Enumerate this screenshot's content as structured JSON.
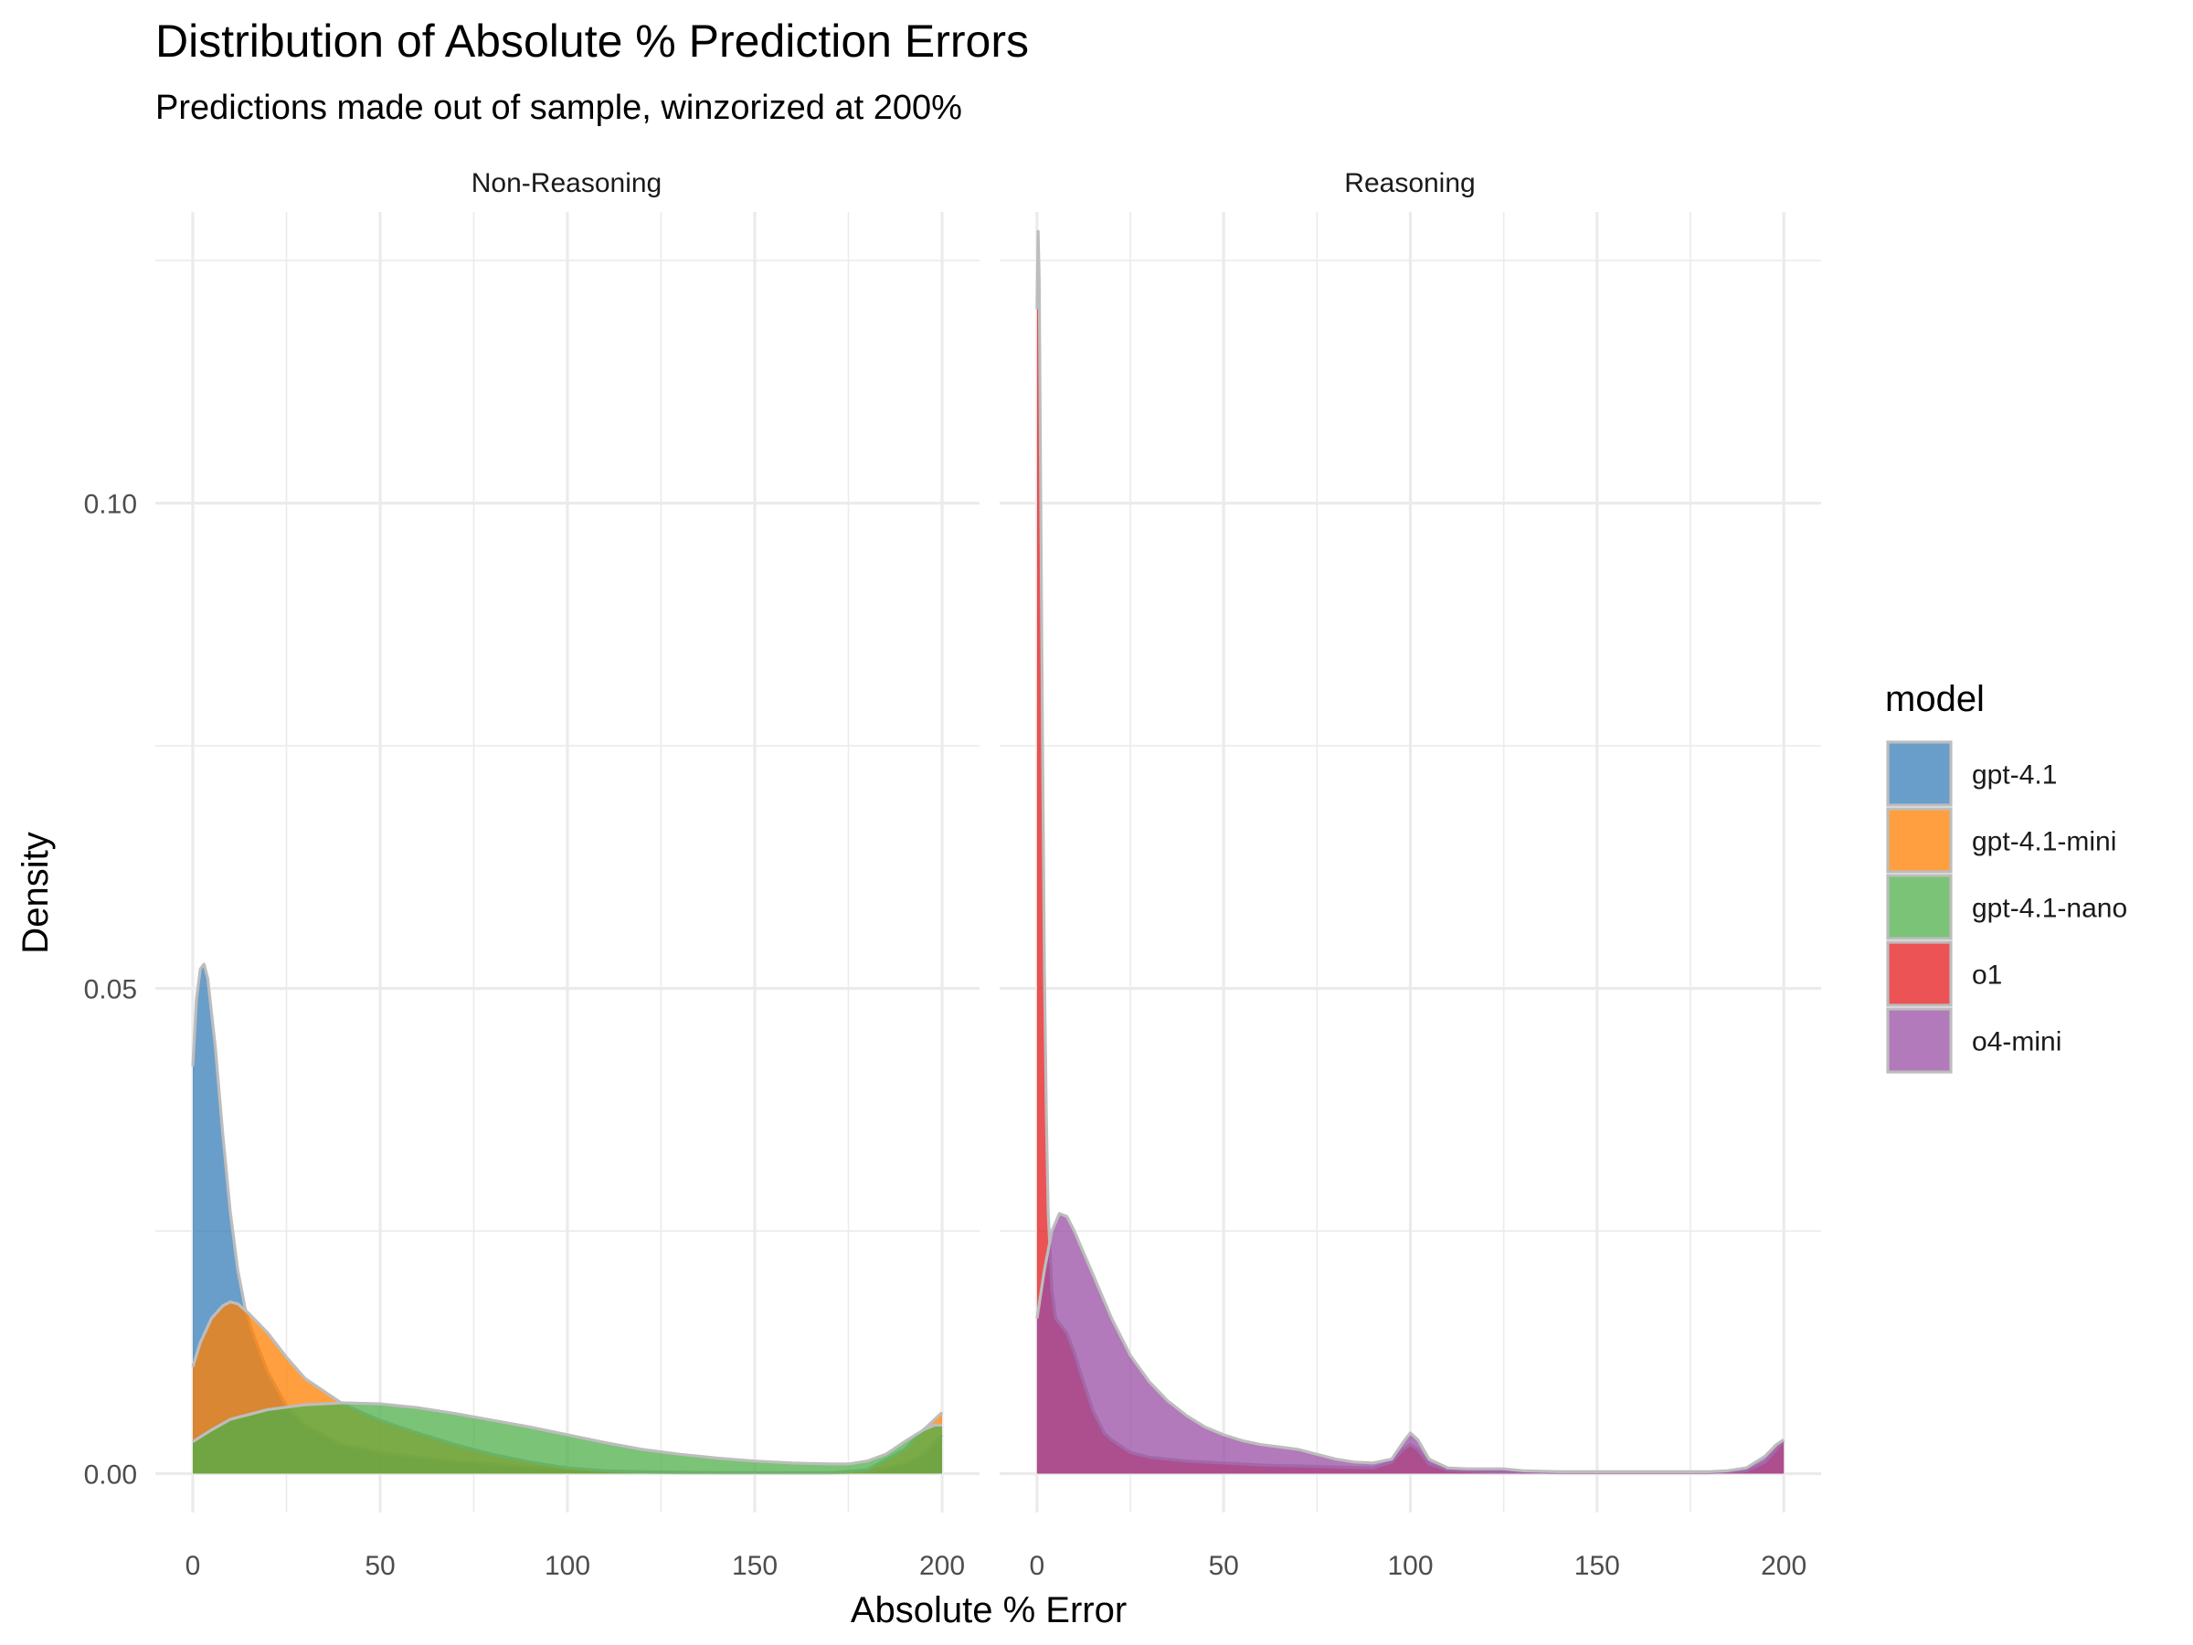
{
  "chart_data": {
    "type": "area",
    "title": "Distribution of Absolute % Prediction Errors",
    "subtitle": "Predictions made out of sample, winzorized at 200%",
    "xlabel": "Absolute % Error",
    "ylabel": "Density",
    "xlim": [
      -10,
      210
    ],
    "ylim": [
      -0.004,
      0.13
    ],
    "x_ticks": [
      0,
      50,
      100,
      150,
      200
    ],
    "y_ticks": [
      0.0,
      0.05,
      0.1
    ],
    "y_tick_labels": [
      "0.00",
      "0.05",
      "0.10"
    ],
    "grid": true,
    "legend": {
      "title": "model",
      "position": "right"
    },
    "series_colors": {
      "gpt-4.1": "#377eb8",
      "gpt-4.1-mini": "#ff7f00",
      "gpt-4.1-nano": "#4daf4a",
      "o1": "#e41a1c",
      "o4-mini": "#984ea3"
    },
    "outline_color": "#bdbdbd",
    "fill_opacity": 0.75,
    "legend_items": [
      "gpt-4.1",
      "gpt-4.1-mini",
      "gpt-4.1-nano",
      "o1",
      "o4-mini"
    ],
    "facets": [
      {
        "label": "Non-Reasoning",
        "series": [
          {
            "name": "gpt-4.1",
            "x": [
              0,
              1,
              2,
              3,
              4,
              6,
              8,
              10,
              12,
              14,
              16,
              18,
              20,
              25,
              30,
              40,
              50,
              60,
              70,
              80,
              90,
              100,
              110,
              120,
              130,
              140,
              150,
              160,
              170,
              180,
              190,
              195,
              200
            ],
            "y": [
              0.042,
              0.049,
              0.052,
              0.0525,
              0.051,
              0.044,
              0.035,
              0.027,
              0.021,
              0.017,
              0.0145,
              0.0125,
              0.0105,
              0.007,
              0.005,
              0.003,
              0.0022,
              0.0017,
              0.0013,
              0.001,
              0.0007,
              0.0005,
              0.0003,
              0.0002,
              0.00015,
              0.0001,
              0.0001,
              8e-05,
              8e-05,
              0.0002,
              0.001,
              0.002,
              0.004
            ]
          },
          {
            "name": "gpt-4.1-mini",
            "x": [
              0,
              2,
              5,
              8,
              10,
              12,
              15,
              20,
              25,
              30,
              40,
              50,
              60,
              70,
              80,
              90,
              100,
              110,
              120,
              130,
              140,
              150,
              160,
              170,
              180,
              190,
              195,
              200
            ],
            "y": [
              0.011,
              0.0135,
              0.016,
              0.0173,
              0.0177,
              0.0175,
              0.0165,
              0.0145,
              0.012,
              0.0098,
              0.0072,
              0.0055,
              0.0042,
              0.003,
              0.002,
              0.0012,
              0.0006,
              0.0003,
              0.00015,
              0.0001,
              0.0001,
              0.0001,
              0.0001,
              0.0001,
              0.0004,
              0.0025,
              0.0045,
              0.0063
            ]
          },
          {
            "name": "gpt-4.1-nano",
            "x": [
              0,
              5,
              10,
              20,
              30,
              40,
              50,
              60,
              70,
              80,
              90,
              100,
              110,
              120,
              130,
              140,
              150,
              160,
              170,
              175,
              180,
              185,
              190,
              195,
              198,
              200
            ],
            "y": [
              0.0033,
              0.0045,
              0.0056,
              0.0066,
              0.0071,
              0.0073,
              0.0072,
              0.0068,
              0.0062,
              0.0055,
              0.0048,
              0.004,
              0.0032,
              0.0025,
              0.002,
              0.0016,
              0.0013,
              0.0011,
              0.001,
              0.001,
              0.0013,
              0.002,
              0.0033,
              0.0045,
              0.005,
              0.005
            ]
          }
        ]
      },
      {
        "label": "Reasoning",
        "series": [
          {
            "name": "o1",
            "x": [
              0,
              0.3,
              0.6,
              1,
              1.5,
              2,
              2.5,
              3,
              4,
              5,
              6,
              8,
              10,
              12,
              15,
              18,
              20,
              25,
              30,
              40,
              50,
              60,
              70,
              80,
              90,
              95,
              98,
              100,
              102,
              105,
              110,
              120,
              130,
              140,
              150,
              160,
              170,
              180,
              190,
              195,
              198,
              200
            ],
            "y": [
              0.12,
              0.128,
              0.123,
              0.1,
              0.075,
              0.052,
              0.037,
              0.027,
              0.019,
              0.016,
              0.0155,
              0.0145,
              0.0125,
              0.01,
              0.0065,
              0.0042,
              0.0035,
              0.0022,
              0.0017,
              0.0013,
              0.0011,
              0.0009,
              0.0008,
              0.0007,
              0.0006,
              0.0012,
              0.0025,
              0.003,
              0.0025,
              0.001,
              0.0004,
              0.0002,
              0.0002,
              0.0001,
              0.0001,
              0.0001,
              0.0001,
              0.0001,
              0.0003,
              0.0012,
              0.0025,
              0.0034
            ]
          },
          {
            "name": "o4-mini",
            "x": [
              0,
              2,
              4,
              6,
              8,
              10,
              12,
              15,
              20,
              25,
              30,
              35,
              40,
              45,
              50,
              55,
              60,
              70,
              75,
              80,
              85,
              90,
              95,
              98,
              100,
              102,
              105,
              110,
              115,
              120,
              125,
              130,
              140,
              150,
              160,
              170,
              180,
              185,
              190,
              195,
              198,
              200
            ],
            "y": [
              0.016,
              0.021,
              0.025,
              0.0268,
              0.0265,
              0.025,
              0.0232,
              0.0205,
              0.016,
              0.0122,
              0.0095,
              0.0075,
              0.006,
              0.0048,
              0.004,
              0.0034,
              0.003,
              0.0025,
              0.002,
              0.0015,
              0.0012,
              0.0011,
              0.0015,
              0.0032,
              0.0042,
              0.0035,
              0.0015,
              0.0006,
              0.0005,
              0.0005,
              0.0005,
              0.0003,
              0.0002,
              0.0002,
              0.0002,
              0.0002,
              0.0002,
              0.0003,
              0.0006,
              0.0018,
              0.003,
              0.0035
            ]
          }
        ]
      }
    ]
  }
}
